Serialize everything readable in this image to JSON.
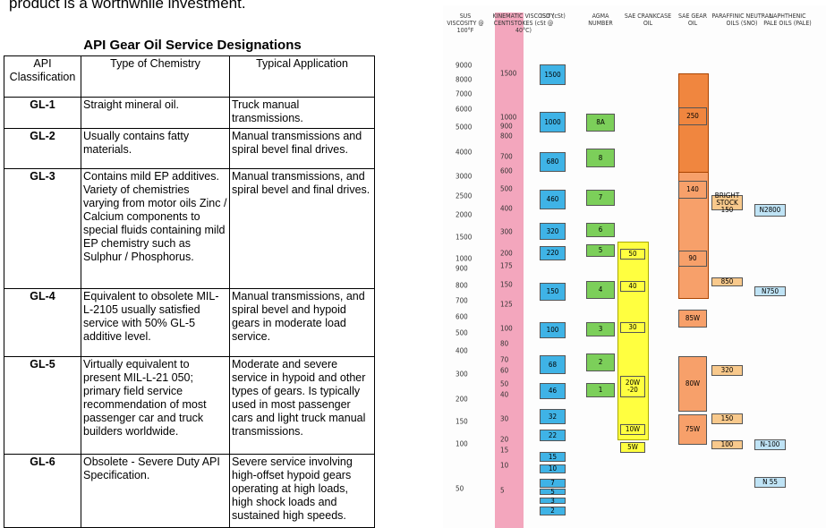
{
  "intro": "product is a worthwhile investment.",
  "title": "API Gear Oil Service Designations",
  "table": {
    "header": [
      "API Classification",
      "Type of Chemistry",
      "Typical Application"
    ],
    "rows": [
      [
        "GL-1",
        "Straight mineral oil.",
        "Truck manual transmissions."
      ],
      [
        "GL-2",
        "Usually contains fatty materials.",
        "Manual transmissions and spiral bevel final drives."
      ],
      [
        "GL-3",
        "Contains mild EP additives. Variety of chemistries varying from motor oils Zinc / Calcium components to special fluids containing mild EP chemistry such as Sulphur / Phosphorus.",
        "Manual transmissions, and spiral bevel and final drives."
      ],
      [
        "GL-4",
        "Equivalent to obsolete MIL-L-2105 usually satisfied service with 50% GL-5 additive level.",
        "Manual transmissions, and spiral bevel and hypoid gears in moderate load service."
      ],
      [
        "GL-5",
        "Virtually equivalent to present MIL-L-21 050; primary field service recommendation of most passenger car and truck builders worldwide.",
        "Moderate and severe service in hypoid and other types of gears. Is typically used in most passenger cars and light truck manual transmissions."
      ],
      [
        "GL-6",
        "Obsolete - Severe Duty API Specification.",
        "Severe service involving high-offset hypoid gears operating at high loads, high shock loads and sustained high speeds."
      ]
    ]
  },
  "chart": {
    "headers": [
      "SUS VISCOSITY @ 100°F",
      "KINEMATIC VISCOSITY CENTISTOKES (cSt @ 40°C)",
      "ISO (cSt)",
      "AGMA NUMBER",
      "SAE CRANKCASE OIL",
      "SAE GEAR OIL",
      "PARAFFINIC NEUTRAL OILS (SNO)",
      "NAPHTHENIC PALE OILS (PALE)"
    ],
    "sus_scale": [
      9000,
      8000,
      7000,
      6000,
      5000,
      4000,
      3000,
      2500,
      2000,
      1500,
      1000,
      900,
      800,
      700,
      600,
      500,
      400,
      300,
      200,
      150,
      100,
      50
    ],
    "kinematic_scale": [
      1500,
      1000,
      900,
      800,
      700,
      600,
      500,
      400,
      300,
      200,
      175,
      150,
      125,
      100,
      80,
      70,
      60,
      50,
      40,
      30,
      20,
      15,
      10,
      5
    ],
    "iso": [
      1500,
      1000,
      680,
      460,
      320,
      220,
      150,
      100,
      68,
      46,
      32,
      22,
      15,
      10,
      7,
      5,
      3,
      2
    ],
    "agma": [
      "8A",
      8,
      7,
      6,
      5,
      4,
      3,
      2,
      1
    ],
    "sae_crankcase": [
      50,
      40,
      30,
      "20W -20",
      "10W",
      "5W"
    ],
    "sae_gear": [
      250,
      140,
      90,
      "85W",
      "80W",
      "75W"
    ],
    "paraffinic": [
      "BRIGHT STOCK 150",
      850,
      320,
      150,
      100
    ],
    "naphthenic": [
      "N2800",
      "N750",
      "N-100",
      "N 55"
    ]
  }
}
